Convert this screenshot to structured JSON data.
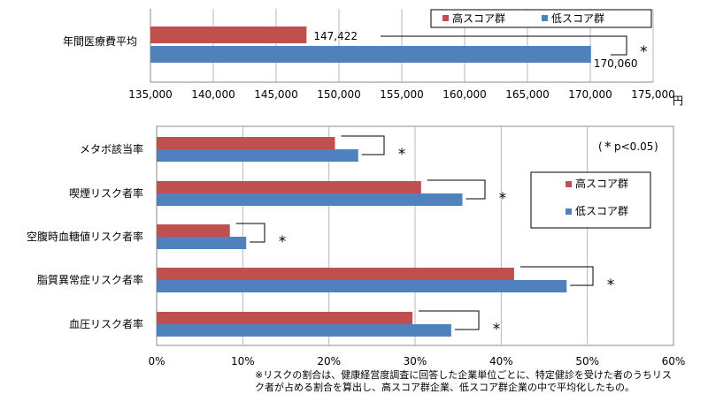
{
  "chart_data": [
    {
      "type": "bar",
      "orientation": "horizontal",
      "categories": [
        "年間医療費平均"
      ],
      "series": [
        {
          "name": "高スコア群",
          "color": "#c0504d",
          "values": [
            147422
          ]
        },
        {
          "name": "低スコア群",
          "color": "#4f81bd",
          "values": [
            170060
          ]
        }
      ],
      "data_labels": [
        "147,422",
        "170,060"
      ],
      "xlim": [
        135000,
        175000
      ],
      "xticks": [
        "135,000",
        "140,000",
        "145,000",
        "150,000",
        "155,000",
        "160,000",
        "165,000",
        "170,000",
        "175,000"
      ],
      "xunit": "円",
      "legend": [
        "高スコア群",
        "低スコア群"
      ],
      "legend_position": "top-right",
      "significance": [
        "*"
      ],
      "grid": true
    },
    {
      "type": "bar",
      "orientation": "horizontal",
      "categories": [
        "メタボ該当率",
        "喫煙リスク者率",
        "空腹時血糖値リスク者率",
        "脂質異常症リスク者率",
        "血圧リスク者率"
      ],
      "series": [
        {
          "name": "高スコア群",
          "color": "#c0504d",
          "values": [
            20.7,
            30.7,
            8.5,
            41.5,
            29.7
          ]
        },
        {
          "name": "低スコア群",
          "color": "#4f81bd",
          "values": [
            23.4,
            35.5,
            10.4,
            47.6,
            34.2
          ]
        }
      ],
      "xlim": [
        0,
        60
      ],
      "xticks": [
        "0%",
        "10%",
        "20%",
        "30%",
        "40%",
        "50%",
        "60%"
      ],
      "legend": [
        "高スコア群",
        "低スコア群"
      ],
      "legend_position": "right",
      "significance": [
        "*",
        "*",
        "*",
        "*",
        "*"
      ],
      "significance_note": "p<0.05",
      "grid": true
    }
  ],
  "note_lines": [
    "※リスクの割合は、健康経営度調査に回答した企業単位ごとに、特定健診を受けた者のうちリス",
    "ク者が占める割合を算出し、高スコア群企業、低スコア群企業の中で平均化したもの。"
  ]
}
